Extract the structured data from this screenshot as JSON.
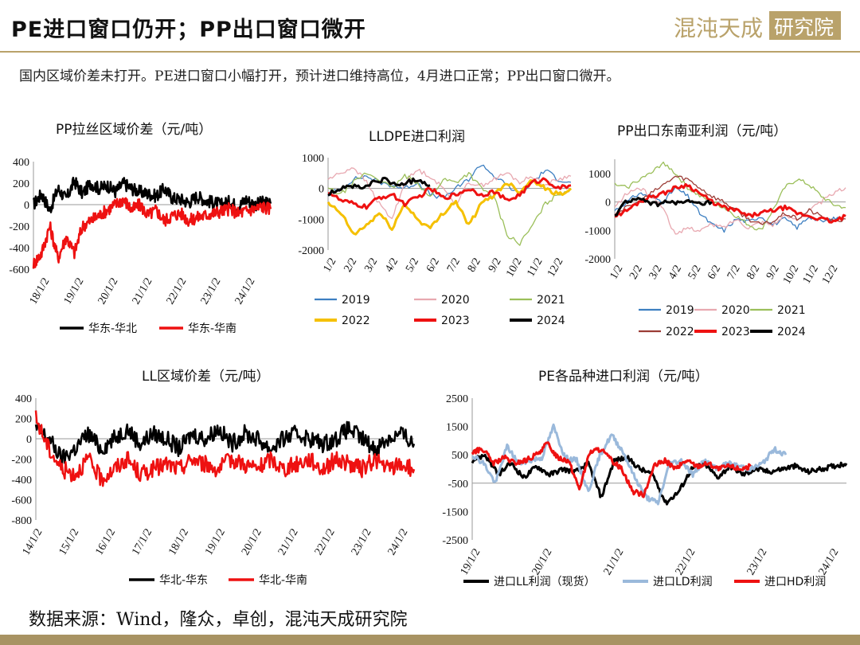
{
  "header": {
    "title": "PE进口窗口仍开；PP出口窗口微开",
    "logo_text": "混沌天成研究院"
  },
  "summary": "国内区域价差未打开。PE进口窗口小幅打开，预计进口维持高位，4月进口正常；PP出口窗口微开。",
  "footer": {
    "source": "数据来源：Wind，隆众，卓创，混沌天成研究院"
  },
  "colors": {
    "black": "#000000",
    "red": "#ee1111",
    "blue": "#3d7fc1",
    "pink": "#e8a8b0",
    "green": "#9bbf5a",
    "yellow": "#f5c000",
    "brown": "#9b3c36",
    "lightblue": "#9ab9db",
    "gold": "#b9a26a"
  },
  "chart_data": [
    {
      "id": "pp-spread",
      "type": "line",
      "title": "PP拉丝区域价差（元/吨）",
      "y_ticks": [
        400,
        200,
        0,
        -200,
        -400,
        -600
      ],
      "ylim": [
        -600,
        400
      ],
      "x_ticks": [
        "18/1/2",
        "19/1/2",
        "20/1/2",
        "21/1/2",
        "22/1/2",
        "23/1/2",
        "24/1/2"
      ],
      "series": [
        {
          "name": "华东-华北",
          "color": "#000000",
          "values": [
            0,
            100,
            -50,
            150,
            50,
            220,
            100,
            200,
            150,
            180,
            120,
            200,
            150,
            120,
            100,
            80,
            150,
            60,
            50,
            20,
            80,
            40,
            20,
            0,
            30,
            -20,
            50,
            0,
            20,
            10
          ]
        },
        {
          "name": "华东-华南",
          "color": "#ee1111",
          "values": [
            -550,
            -450,
            -200,
            -500,
            -300,
            -450,
            -200,
            -150,
            -100,
            -50,
            0,
            50,
            -50,
            0,
            -100,
            -50,
            -150,
            -100,
            -80,
            -150,
            -120,
            -100,
            -80,
            -60,
            -40,
            -80,
            -60,
            -40,
            -20,
            -40
          ]
        }
      ]
    },
    {
      "id": "lldpe-import-profit",
      "type": "line",
      "title": "LLDPE进口利润",
      "y_ticks": [
        1000,
        0,
        -1000,
        -2000
      ],
      "ylim": [
        -2000,
        1000
      ],
      "x_ticks": [
        "1/2",
        "2/2",
        "3/2",
        "4/2",
        "5/2",
        "6/2",
        "7/2",
        "8/2",
        "9/2",
        "10/2",
        "11/2",
        "12/2"
      ],
      "series": [
        {
          "name": "2019",
          "color": "#3d7fc1",
          "values": [
            -200,
            0,
            300,
            400,
            200,
            100,
            0,
            200,
            -200,
            -300,
            0,
            300,
            800,
            400,
            100,
            -200,
            200,
            600,
            300,
            200
          ]
        },
        {
          "name": "2020",
          "color": "#e8a8b0",
          "values": [
            300,
            500,
            700,
            200,
            -500,
            -1000,
            200,
            600,
            400,
            0,
            -500,
            200,
            100,
            300,
            500,
            200,
            400,
            100,
            300,
            400
          ]
        },
        {
          "name": "2021",
          "color": "#9bbf5a",
          "values": [
            0,
            -200,
            200,
            500,
            300,
            0,
            400,
            200,
            -300,
            300,
            200,
            500,
            0,
            -300,
            -1500,
            -1800,
            -1200,
            -500,
            -200,
            0
          ]
        },
        {
          "name": "2022",
          "color": "#f5c000",
          "values": [
            -500,
            -800,
            -1500,
            -1200,
            -800,
            -1300,
            -500,
            -1000,
            -1300,
            -800,
            -400,
            -1200,
            -500,
            -200,
            200,
            -100,
            300,
            0,
            -200,
            0
          ]
        },
        {
          "name": "2023",
          "color": "#ee1111",
          "values": [
            -100,
            -400,
            -500,
            -600,
            -300,
            -200,
            -500,
            -300,
            0,
            -300,
            -200,
            0,
            -200,
            -100,
            -400,
            -200,
            200,
            300,
            0,
            100
          ]
        },
        {
          "name": "2024",
          "color": "#000000",
          "values": [
            -200,
            0,
            100,
            0,
            200,
            300,
            100,
            200,
            300,
            100
          ]
        }
      ]
    },
    {
      "id": "pp-export-sea",
      "type": "line",
      "title": "PP出口东南亚利润（元/吨）",
      "y_ticks": [
        1000,
        0,
        -1000,
        -2000
      ],
      "ylim": [
        -2000,
        1500
      ],
      "x_ticks": [
        "1/2",
        "2/2",
        "3/2",
        "4/2",
        "5/2",
        "6/2",
        "7/2",
        "8/2",
        "9/2",
        "10/2",
        "11/2",
        "12/2"
      ],
      "series": [
        {
          "name": "2019",
          "color": "#3d7fc1",
          "values": [
            -300,
            0,
            300,
            200,
            0,
            500,
            200,
            -400,
            -800,
            -1000,
            -600,
            -700,
            -500,
            -800,
            -600,
            -900,
            -500,
            -700,
            -600,
            -500
          ]
        },
        {
          "name": "2020",
          "color": "#e8a8b0",
          "values": [
            -200,
            300,
            500,
            200,
            -200,
            -1200,
            -900,
            -1000,
            -800,
            -900,
            -600,
            -900,
            -700,
            -800,
            -500,
            -600,
            -300,
            0,
            300,
            500
          ]
        },
        {
          "name": "2021",
          "color": "#9bbf5a",
          "values": [
            600,
            500,
            800,
            1000,
            1400,
            1000,
            500,
            200,
            0,
            -200,
            -500,
            -800,
            -1000,
            -300,
            500,
            800,
            600,
            200,
            -100,
            -200
          ]
        },
        {
          "name": "2022",
          "color": "#9b3c36",
          "values": [
            -400,
            -200,
            0,
            300,
            600,
            900,
            800,
            500,
            200,
            0,
            -300,
            -600,
            -800,
            -700,
            -400,
            -600,
            -300,
            -500,
            -700,
            -600
          ]
        },
        {
          "name": "2023",
          "color": "#ee1111",
          "values": [
            -500,
            -300,
            0,
            200,
            300,
            500,
            600,
            300,
            0,
            -200,
            -300,
            -500,
            -400,
            -300,
            -200,
            -400,
            -500,
            -600,
            -700,
            -500
          ]
        },
        {
          "name": "2024",
          "color": "#000000",
          "values": [
            -500,
            0,
            100,
            0,
            -100,
            50,
            -50,
            0,
            -100,
            0
          ]
        }
      ]
    },
    {
      "id": "ll-spread",
      "type": "line",
      "title": "LL区域价差（元/吨）",
      "y_ticks": [
        400,
        200,
        0,
        -200,
        -400,
        -600,
        -800
      ],
      "ylim": [
        -800,
        400
      ],
      "x_ticks": [
        "14/1/2",
        "15/1/2",
        "16/1/2",
        "17/1/2",
        "18/1/2",
        "19/1/2",
        "20/1/2",
        "21/1/2",
        "22/1/2",
        "23/1/2",
        "24/1/2"
      ],
      "series": [
        {
          "name": "华北-华东",
          "color": "#000000",
          "values": [
            100,
            0,
            -200,
            -100,
            50,
            -100,
            0,
            100,
            -50,
            50,
            0,
            -100,
            50,
            0,
            100,
            -50,
            50,
            0,
            -100,
            0,
            50,
            0,
            -50,
            0,
            100,
            0,
            -100,
            0,
            50,
            -50
          ]
        },
        {
          "name": "华北-华南",
          "color": "#ee1111",
          "values": [
            200,
            -100,
            -300,
            -350,
            -200,
            -400,
            -300,
            -200,
            -350,
            -300,
            -250,
            -300,
            -200,
            -250,
            -300,
            -200,
            -250,
            -300,
            -200,
            -300,
            -250,
            -200,
            -300,
            -200,
            -250,
            -300,
            -200,
            -300,
            -250,
            -300
          ]
        }
      ]
    },
    {
      "id": "pe-import-profit",
      "type": "line",
      "title": "PE各品种进口利润（元/吨）",
      "y_ticks": [
        2500,
        1500,
        500,
        -500,
        -1500,
        -2500
      ],
      "ylim": [
        -2500,
        2500
      ],
      "x_ticks": [
        "19/1/2",
        "20/1/2",
        "21/1/2",
        "22/1/2",
        "23/1/2",
        "24/1/2"
      ],
      "series": [
        {
          "name": "进口LL利润（现货）",
          "color": "#000000",
          "values": [
            300,
            500,
            -200,
            200,
            -300,
            100,
            -200,
            0,
            -100,
            200,
            -1000,
            300,
            400,
            0,
            -200,
            -1200,
            -800,
            0,
            200,
            -300,
            100,
            -200,
            0,
            -100,
            0,
            100,
            -100,
            0,
            100,
            200
          ]
        },
        {
          "name": "进口LD利润",
          "color": "#9ab9db",
          "values": [
            500,
            200,
            -500,
            800,
            200,
            300,
            400,
            1500,
            400,
            300,
            -800,
            500,
            1200,
            600,
            -300,
            -1000,
            -1200,
            200,
            300,
            -200,
            300,
            0,
            200,
            100,
            0,
            200,
            700,
            500,
            null,
            null
          ]
        },
        {
          "name": "进口HD利润",
          "color": "#ee1111",
          "values": [
            600,
            700,
            200,
            400,
            200,
            300,
            500,
            900,
            400,
            300,
            -700,
            600,
            700,
            300,
            0,
            -800,
            -900,
            100,
            300,
            0,
            300,
            100,
            200,
            0,
            100,
            0,
            100,
            null,
            null,
            null
          ]
        }
      ]
    }
  ]
}
